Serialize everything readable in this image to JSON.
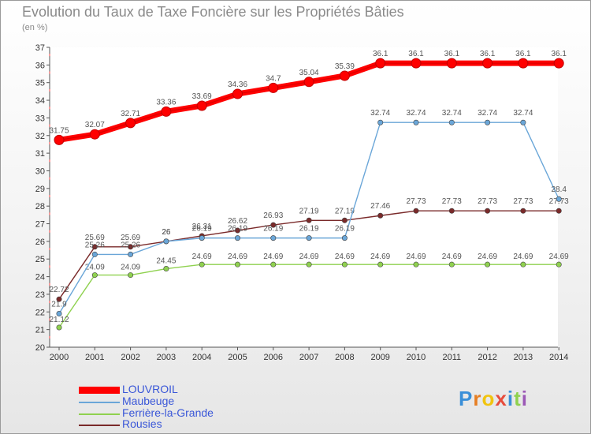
{
  "header": {
    "title": "Evolution du Taux de Taxe Foncière sur les Propriétés Bâties",
    "unit": "(en %)"
  },
  "brand": {
    "letters": [
      "P",
      "r",
      "o",
      "x",
      "i",
      "t",
      "i"
    ]
  },
  "chart_data": {
    "type": "line",
    "title": "Evolution du Taux de Taxe Foncière sur les Propriétés Bâties",
    "ylabel": "(en %)",
    "xlabel": "",
    "ylim": [
      20,
      37
    ],
    "yticks": [
      20,
      21,
      22,
      23,
      24,
      25,
      26,
      27,
      28,
      29,
      30,
      31,
      32,
      33,
      34,
      35,
      36,
      37
    ],
    "grid": false,
    "legend_position": "bottom-left",
    "categories": [
      "2000",
      "2001",
      "2002",
      "2003",
      "2004",
      "2005",
      "2006",
      "2007",
      "2008",
      "2009",
      "2010",
      "2011",
      "2012",
      "2013",
      "2014"
    ],
    "series": [
      {
        "name": "LOUVROIL",
        "color": "#ff0000",
        "values": [
          31.75,
          32.07,
          32.71,
          33.36,
          33.69,
          34.36,
          34.7,
          35.04,
          35.39,
          36.1,
          36.1,
          36.1,
          36.1,
          36.1,
          36.1
        ],
        "labels": [
          "31.75",
          "32.07",
          "32.71",
          "33.36",
          "33.69",
          "34.36",
          "34.7",
          "35.04",
          "35.39",
          "36.1",
          "36.1",
          "36.1",
          "36.1",
          "36.1",
          "36.1"
        ]
      },
      {
        "name": "Maubeuge",
        "color": "#6aa6d8",
        "values": [
          21.9,
          25.26,
          25.26,
          26.0,
          26.19,
          26.19,
          26.19,
          26.19,
          26.19,
          32.74,
          32.74,
          32.74,
          32.74,
          32.74,
          28.4
        ],
        "labels": [
          "21.9",
          "25.26",
          "25.26",
          "26",
          "26.19",
          "26.19",
          "26.19",
          "26.19",
          "26.19",
          "32.74",
          "32.74",
          "32.74",
          "32.74",
          "32.74",
          "28.4"
        ]
      },
      {
        "name": "Ferrière-la-Grande",
        "color": "#8fd14f",
        "values": [
          21.12,
          24.09,
          24.09,
          24.45,
          24.69,
          24.69,
          24.69,
          24.69,
          24.69,
          24.69,
          24.69,
          24.69,
          24.69,
          24.69,
          24.69
        ],
        "labels": [
          "21.12",
          "24.09",
          "24.09",
          "24.45",
          "24.69",
          "24.69",
          "24.69",
          "24.69",
          "24.69",
          "24.69",
          "24.69",
          "24.69",
          "24.69",
          "24.69",
          "24.69"
        ]
      },
      {
        "name": "Rousies",
        "color": "#7a2a2a",
        "values": [
          22.72,
          25.69,
          25.69,
          26.0,
          26.31,
          26.62,
          26.93,
          27.19,
          27.19,
          27.46,
          27.73,
          27.73,
          27.73,
          27.73,
          27.73
        ],
        "labels": [
          "22.72",
          "25.69",
          "25.69",
          "26",
          "26.31",
          "26.62",
          "26.93",
          "27.19",
          "27.19",
          "27.46",
          "27.73",
          "27.73",
          "27.73",
          "27.73",
          "27.73"
        ]
      }
    ]
  }
}
